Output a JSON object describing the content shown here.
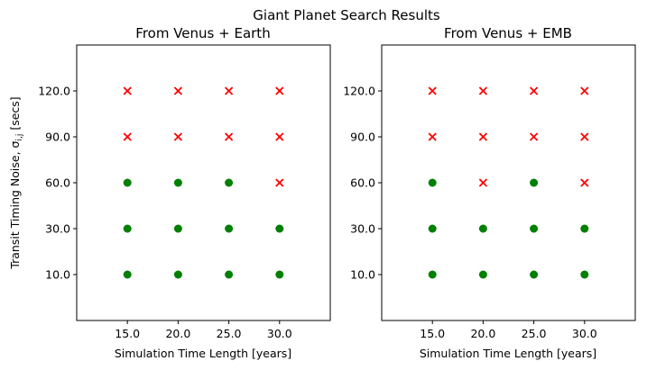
{
  "figure_title": "Giant Planet Search Results",
  "chart_data": [
    {
      "type": "scatter",
      "title": "From Venus + Earth",
      "xlabel": "Simulation Time Length [years]",
      "ylabel": "Transit Timing Noise, σ",
      "ylabel_subscript": "i,j",
      "ylabel_suffix": " [secs]",
      "x_ticks": [
        "15.0",
        "20.0",
        "25.0",
        "30.0"
      ],
      "y_ticks": [
        "10.0",
        "30.0",
        "60.0",
        "90.0",
        "120.0"
      ],
      "markers": {
        "detected": {
          "shape": "circle",
          "color": "#008000"
        },
        "not_detected": {
          "shape": "x",
          "color": "#ff0000"
        }
      },
      "grid": false,
      "points": [
        {
          "x": "15.0",
          "y": "10.0",
          "result": "detected"
        },
        {
          "x": "20.0",
          "y": "10.0",
          "result": "detected"
        },
        {
          "x": "25.0",
          "y": "10.0",
          "result": "detected"
        },
        {
          "x": "30.0",
          "y": "10.0",
          "result": "detected"
        },
        {
          "x": "15.0",
          "y": "30.0",
          "result": "detected"
        },
        {
          "x": "20.0",
          "y": "30.0",
          "result": "detected"
        },
        {
          "x": "25.0",
          "y": "30.0",
          "result": "detected"
        },
        {
          "x": "30.0",
          "y": "30.0",
          "result": "detected"
        },
        {
          "x": "15.0",
          "y": "60.0",
          "result": "detected"
        },
        {
          "x": "20.0",
          "y": "60.0",
          "result": "detected"
        },
        {
          "x": "25.0",
          "y": "60.0",
          "result": "detected"
        },
        {
          "x": "30.0",
          "y": "60.0",
          "result": "not_detected"
        },
        {
          "x": "15.0",
          "y": "90.0",
          "result": "not_detected"
        },
        {
          "x": "20.0",
          "y": "90.0",
          "result": "not_detected"
        },
        {
          "x": "25.0",
          "y": "90.0",
          "result": "not_detected"
        },
        {
          "x": "30.0",
          "y": "90.0",
          "result": "not_detected"
        },
        {
          "x": "15.0",
          "y": "120.0",
          "result": "not_detected"
        },
        {
          "x": "20.0",
          "y": "120.0",
          "result": "not_detected"
        },
        {
          "x": "25.0",
          "y": "120.0",
          "result": "not_detected"
        },
        {
          "x": "30.0",
          "y": "120.0",
          "result": "not_detected"
        }
      ]
    },
    {
      "type": "scatter",
      "title": "From Venus + EMB",
      "xlabel": "Simulation Time Length [years]",
      "ylabel": "",
      "x_ticks": [
        "15.0",
        "20.0",
        "25.0",
        "30.0"
      ],
      "y_ticks": [
        "10.0",
        "30.0",
        "60.0",
        "90.0",
        "120.0"
      ],
      "markers": {
        "detected": {
          "shape": "circle",
          "color": "#008000"
        },
        "not_detected": {
          "shape": "x",
          "color": "#ff0000"
        }
      },
      "grid": false,
      "points": [
        {
          "x": "15.0",
          "y": "10.0",
          "result": "detected"
        },
        {
          "x": "20.0",
          "y": "10.0",
          "result": "detected"
        },
        {
          "x": "25.0",
          "y": "10.0",
          "result": "detected"
        },
        {
          "x": "30.0",
          "y": "10.0",
          "result": "detected"
        },
        {
          "x": "15.0",
          "y": "30.0",
          "result": "detected"
        },
        {
          "x": "20.0",
          "y": "30.0",
          "result": "detected"
        },
        {
          "x": "25.0",
          "y": "30.0",
          "result": "detected"
        },
        {
          "x": "30.0",
          "y": "30.0",
          "result": "detected"
        },
        {
          "x": "15.0",
          "y": "60.0",
          "result": "detected"
        },
        {
          "x": "20.0",
          "y": "60.0",
          "result": "not_detected"
        },
        {
          "x": "25.0",
          "y": "60.0",
          "result": "detected"
        },
        {
          "x": "30.0",
          "y": "60.0",
          "result": "not_detected"
        },
        {
          "x": "15.0",
          "y": "90.0",
          "result": "not_detected"
        },
        {
          "x": "20.0",
          "y": "90.0",
          "result": "not_detected"
        },
        {
          "x": "25.0",
          "y": "90.0",
          "result": "not_detected"
        },
        {
          "x": "30.0",
          "y": "90.0",
          "result": "not_detected"
        },
        {
          "x": "15.0",
          "y": "120.0",
          "result": "not_detected"
        },
        {
          "x": "20.0",
          "y": "120.0",
          "result": "not_detected"
        },
        {
          "x": "25.0",
          "y": "120.0",
          "result": "not_detected"
        },
        {
          "x": "30.0",
          "y": "120.0",
          "result": "not_detected"
        }
      ]
    }
  ]
}
